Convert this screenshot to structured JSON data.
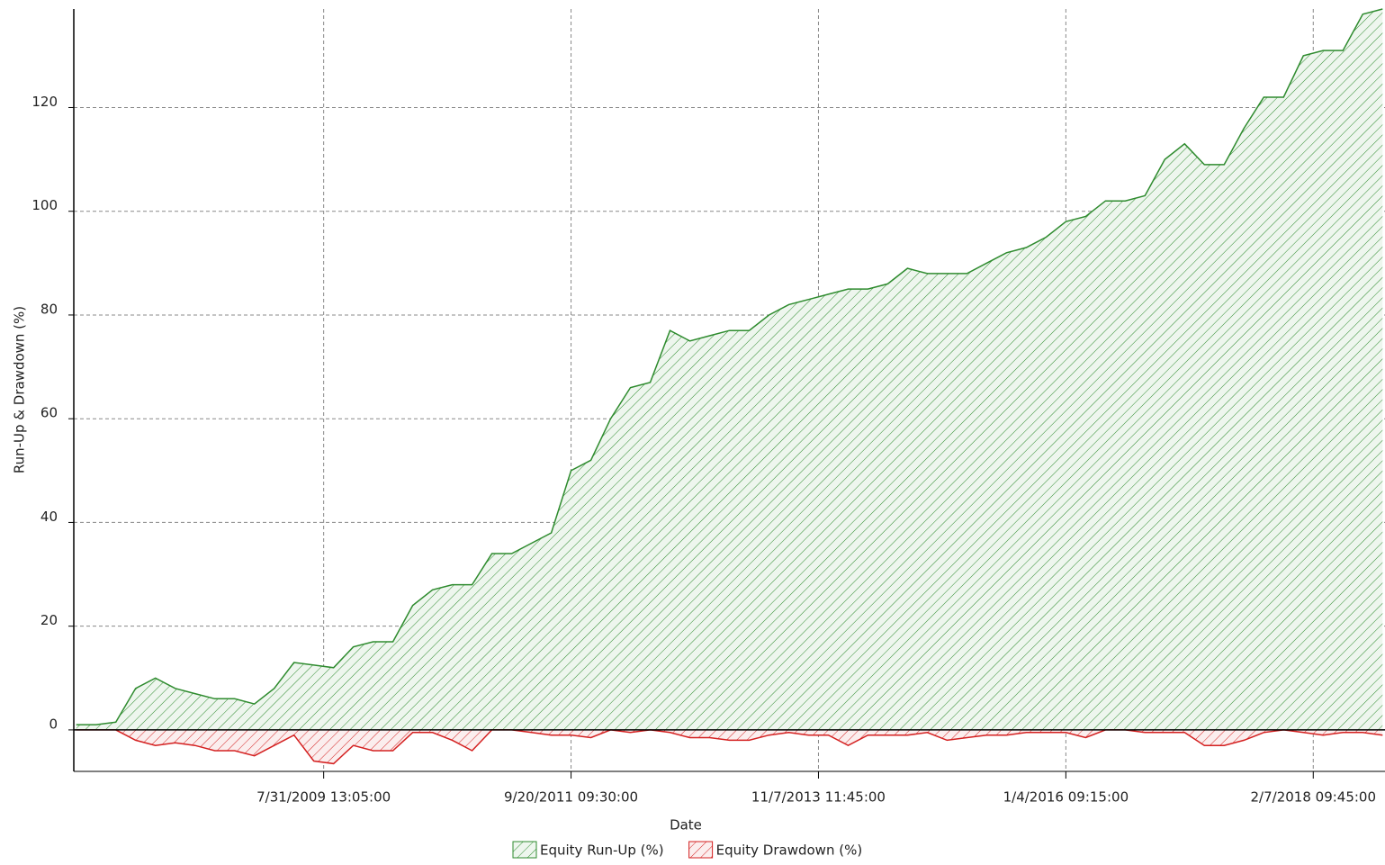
{
  "chart_data": {
    "type": "area",
    "x_label": "Date",
    "y_label": "Run-Up & Drawdown (%)",
    "x": [
      0,
      4,
      8,
      12,
      16,
      20,
      24,
      28,
      32,
      36,
      40,
      44,
      48,
      52,
      56,
      60,
      64,
      68,
      72,
      76,
      80,
      84,
      88,
      92,
      96,
      100,
      104,
      108,
      112,
      116,
      120,
      124,
      128,
      132,
      136,
      140,
      144,
      148,
      152,
      156,
      160,
      164,
      168,
      172,
      176,
      180,
      184,
      188,
      192,
      196,
      200,
      204,
      208,
      212,
      216,
      220,
      224,
      228,
      232,
      236,
      240,
      244,
      248,
      252,
      256,
      260,
      264
    ],
    "series": [
      {
        "name": "Equity Run-Up (%)",
        "color": "#2e8b2e",
        "values": [
          1,
          1,
          1.5,
          8,
          10,
          8,
          7,
          6,
          6,
          5,
          8,
          13,
          12.5,
          12,
          16,
          17,
          17,
          24,
          27,
          28,
          28,
          34,
          34,
          36,
          38,
          50,
          52,
          60,
          66,
          67,
          77,
          75,
          76,
          77,
          77,
          80,
          82,
          83,
          84,
          85,
          85,
          86,
          89,
          88,
          88,
          88,
          90,
          92,
          93,
          95,
          98,
          99,
          102,
          102,
          103,
          110,
          113,
          109,
          109,
          116,
          122,
          122,
          130,
          131,
          131,
          138,
          139
        ]
      },
      {
        "name": "Equity Drawdown (%)",
        "color": "#d42020",
        "values": [
          0,
          0,
          0,
          -2,
          -3,
          -2.5,
          -3,
          -4,
          -4,
          -5,
          -3,
          -1,
          -6,
          -6.5,
          -3,
          -4,
          -4,
          -0.5,
          -0.5,
          -2,
          -4,
          0,
          0,
          -0.5,
          -1,
          -1,
          -1.5,
          0,
          -0.5,
          0,
          -0.5,
          -1.5,
          -1.5,
          -2,
          -2,
          -1,
          -0.5,
          -1,
          -1,
          -3,
          -1,
          -1,
          -1,
          -0.5,
          -2,
          -1.5,
          -1,
          -1,
          -0.5,
          -0.5,
          -0.5,
          -1.5,
          0,
          0,
          -0.5,
          -0.5,
          -0.5,
          -3,
          -3,
          -2,
          -0.5,
          0,
          -0.5,
          -1,
          -0.5,
          -0.5,
          -1
        ]
      }
    ],
    "xlim": [
      -0.5,
      264.5
    ],
    "xticks": [
      {
        "value": 50,
        "label": "7/31/2009 13:05:00"
      },
      {
        "value": 100,
        "label": "9/20/2011 09:30:00"
      },
      {
        "value": 150,
        "label": "11/7/2013 11:45:00"
      },
      {
        "value": 200,
        "label": "1/4/2016 09:15:00"
      },
      {
        "value": 250,
        "label": "2/7/2018 09:45:00"
      }
    ],
    "ylim": [
      -8,
      139
    ],
    "yticks": [
      0,
      20,
      40,
      60,
      80,
      100,
      120
    ],
    "grid": true,
    "legend": "bottom"
  }
}
